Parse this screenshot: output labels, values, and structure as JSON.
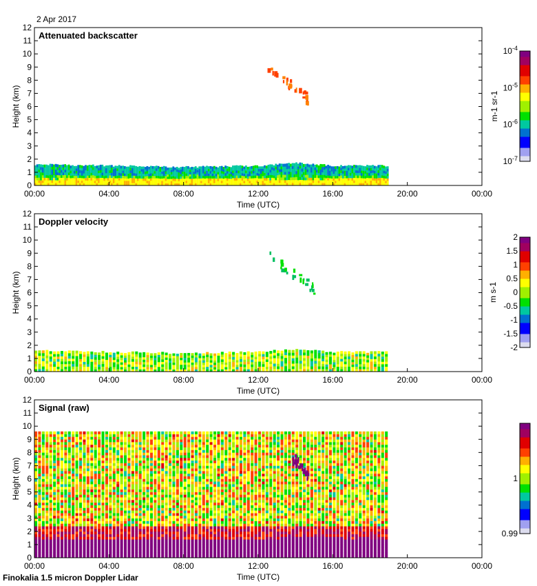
{
  "header": {
    "date": "2 Apr 2017"
  },
  "footer": {
    "station": "Finokalia 1.5 micron Doppler Lidar"
  },
  "chart_data": [
    {
      "type": "heatmap",
      "title": "Attenuated backscatter",
      "xlabel": "Time (UTC)",
      "ylabel": "Height (km)",
      "xlim": [
        0,
        24
      ],
      "ylim": [
        0,
        12
      ],
      "xticks": [
        "00:00",
        "04:00",
        "08:00",
        "12:00",
        "16:00",
        "20:00",
        "00:00"
      ],
      "yticks": [
        "0",
        "1",
        "2",
        "3",
        "4",
        "5",
        "6",
        "7",
        "8",
        "9",
        "10",
        "11",
        "12"
      ],
      "colorbar": {
        "label": "m-1 sr-1",
        "scale": "log",
        "ticks": [
          "10-7",
          "10-6",
          "10-5",
          "10-4"
        ],
        "range": [
          1e-07,
          0.0001
        ]
      },
      "data_end_hour": 19,
      "boundary_layer_top_km": [
        [
          0,
          1.6
        ],
        [
          4,
          1.5
        ],
        [
          8,
          1.4
        ],
        [
          12,
          1.5
        ],
        [
          14,
          1.7
        ],
        [
          16,
          1.5
        ],
        [
          19,
          1.5
        ]
      ],
      "cloud": {
        "time_range": [
          12.5,
          15.0
        ],
        "height_range_km": [
          6.7,
          9.4
        ],
        "value": "1e-5 to 3e-5"
      }
    },
    {
      "type": "heatmap",
      "title": "Doppler velocity",
      "xlabel": "Time (UTC)",
      "ylabel": "Height (km)",
      "xlim": [
        0,
        24
      ],
      "ylim": [
        0,
        12
      ],
      "xticks": [
        "00:00",
        "04:00",
        "08:00",
        "12:00",
        "16:00",
        "20:00",
        "00:00"
      ],
      "yticks": [
        "0",
        "1",
        "2",
        "3",
        "4",
        "5",
        "6",
        "7",
        "8",
        "9",
        "10",
        "11",
        "12"
      ],
      "colorbar": {
        "label": "m s-1",
        "scale": "linear",
        "ticks": [
          "-2",
          "-1.5",
          "-1",
          "-0.5",
          "0",
          "0.5",
          "1",
          "1.5",
          "2"
        ],
        "range": [
          -2,
          2
        ]
      },
      "data_end_hour": 19,
      "boundary_layer_top_km": [
        [
          0,
          1.6
        ],
        [
          4,
          1.5
        ],
        [
          8,
          1.4
        ],
        [
          12,
          1.5
        ],
        [
          14,
          1.7
        ],
        [
          16,
          1.5
        ],
        [
          19,
          1.5
        ]
      ],
      "cloud": {
        "time_range": [
          12.5,
          15.0
        ],
        "height_range_km": [
          6.7,
          9.4
        ],
        "value": "-0.5 to 0"
      }
    },
    {
      "type": "heatmap",
      "title": "Signal (raw)",
      "xlabel": "Time (UTC)",
      "ylabel": "Height (km)",
      "xlim": [
        0,
        24
      ],
      "ylim": [
        0,
        12
      ],
      "xticks": [
        "00:00",
        "04:00",
        "08:00",
        "12:00",
        "16:00",
        "20:00",
        "00:00"
      ],
      "yticks": [
        "0",
        "1",
        "2",
        "3",
        "4",
        "5",
        "6",
        "7",
        "8",
        "9",
        "10",
        "11",
        "12"
      ],
      "colorbar": {
        "label": "",
        "scale": "linear",
        "ticks": [
          "0.99",
          "1"
        ],
        "range": [
          0.99,
          1.01
        ]
      },
      "data_end_hour": 19,
      "max_range_km": 9.6,
      "boundary_layer_top_km": [
        [
          0,
          1.3
        ],
        [
          12,
          1.3
        ],
        [
          14,
          1.6
        ],
        [
          19,
          1.3
        ]
      ],
      "cloud": {
        "time_range": [
          13.8,
          14.6
        ],
        "height_range_km": [
          6.8,
          8.2
        ],
        "value": "1.01"
      }
    }
  ]
}
